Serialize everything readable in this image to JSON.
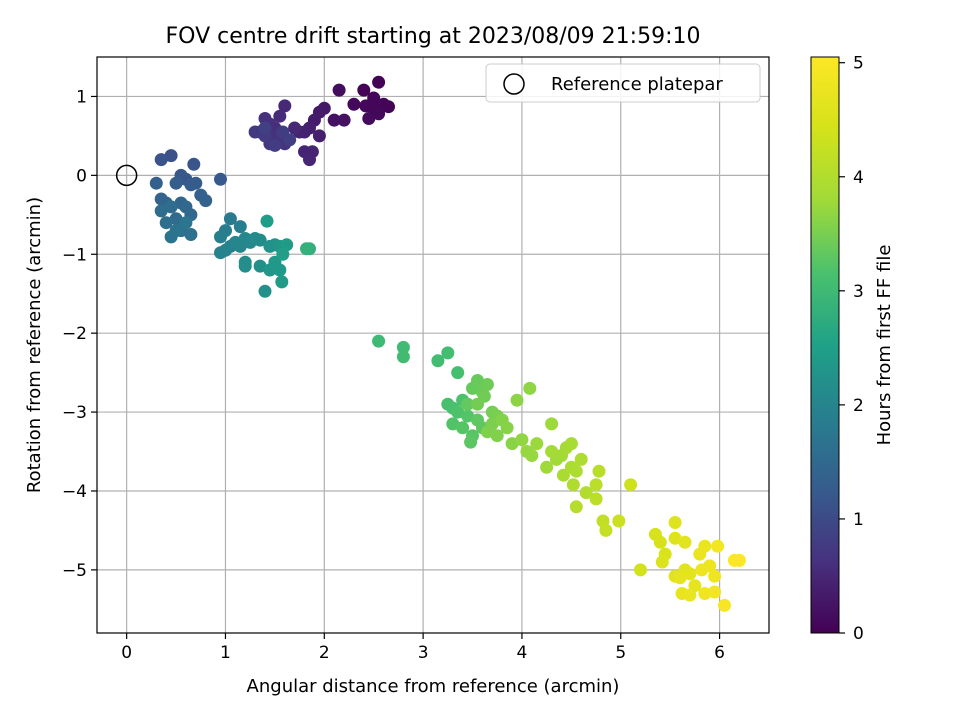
{
  "chart_data": {
    "type": "scatter",
    "title": "FOV centre drift starting at 2023/08/09 21:59:10",
    "xlabel": "Angular distance from reference (arcmin)",
    "ylabel": "Rotation from reference (arcmin)",
    "xlim": [
      -0.3,
      6.5
    ],
    "ylim": [
      -5.8,
      1.5
    ],
    "xticks": [
      "0",
      "1",
      "2",
      "3",
      "4",
      "5",
      "6"
    ],
    "yticks": [
      "1",
      "0",
      "−1",
      "−2",
      "−3",
      "−4",
      "−5"
    ],
    "grid": true,
    "legend": {
      "placement": "top-right",
      "entries": [
        {
          "label": "Reference platepar",
          "marker": "open-circle"
        }
      ]
    },
    "reference_point": {
      "x": 0,
      "y": 0
    },
    "colorbar": {
      "label": "Hours from first FF file",
      "min": 0,
      "max": 5.05,
      "ticks": [
        "0",
        "1",
        "2",
        "3",
        "4",
        "5"
      ],
      "colormap": "viridis"
    },
    "points": [
      [
        2.55,
        1.18,
        0.02
      ],
      [
        2.4,
        1.08,
        0.05
      ],
      [
        2.5,
        0.98,
        0.06
      ],
      [
        2.6,
        0.9,
        0.04
      ],
      [
        2.65,
        0.87,
        0.05
      ],
      [
        2.42,
        0.88,
        0.08
      ],
      [
        2.3,
        0.9,
        0.1
      ],
      [
        2.5,
        0.85,
        0.07
      ],
      [
        2.45,
        0.72,
        0.12
      ],
      [
        2.55,
        0.78,
        0.09
      ],
      [
        2.15,
        1.08,
        0.15
      ],
      [
        2.2,
        0.7,
        0.2
      ],
      [
        2.1,
        0.7,
        0.22
      ],
      [
        2.0,
        0.85,
        0.3
      ],
      [
        1.95,
        0.8,
        0.32
      ],
      [
        1.9,
        0.7,
        0.35
      ],
      [
        1.85,
        0.6,
        0.38
      ],
      [
        1.95,
        0.5,
        0.4
      ],
      [
        1.8,
        0.55,
        0.42
      ],
      [
        1.75,
        0.55,
        0.44
      ],
      [
        1.88,
        0.3,
        0.45
      ],
      [
        1.8,
        0.3,
        0.46
      ],
      [
        1.85,
        0.2,
        0.48
      ],
      [
        1.7,
        0.6,
        0.5
      ],
      [
        1.6,
        0.88,
        0.52
      ],
      [
        1.55,
        0.75,
        0.55
      ],
      [
        1.5,
        0.6,
        0.58
      ],
      [
        1.45,
        0.65,
        0.6
      ],
      [
        1.4,
        0.72,
        0.62
      ],
      [
        1.5,
        0.5,
        0.64
      ],
      [
        1.55,
        0.45,
        0.66
      ],
      [
        1.6,
        0.4,
        0.68
      ],
      [
        1.45,
        0.4,
        0.7
      ],
      [
        1.35,
        0.55,
        0.72
      ],
      [
        1.3,
        0.55,
        0.74
      ],
      [
        1.4,
        0.5,
        0.76
      ],
      [
        1.5,
        0.38,
        0.78
      ],
      [
        1.58,
        0.55,
        0.8
      ],
      [
        1.65,
        0.45,
        0.82
      ],
      [
        1.4,
        0.6,
        0.84
      ],
      [
        0.45,
        0.25,
        1.1
      ],
      [
        0.35,
        0.2,
        1.12
      ],
      [
        0.68,
        0.14,
        1.15
      ],
      [
        0.55,
        0.0,
        1.18
      ],
      [
        0.6,
        -0.05,
        1.2
      ],
      [
        0.95,
        -0.05,
        1.22
      ],
      [
        0.65,
        -0.12,
        1.25
      ],
      [
        0.7,
        -0.1,
        1.27
      ],
      [
        0.5,
        -0.1,
        1.3
      ],
      [
        0.3,
        -0.1,
        1.33
      ],
      [
        0.75,
        -0.25,
        1.35
      ],
      [
        0.8,
        -0.32,
        1.38
      ],
      [
        0.35,
        -0.3,
        1.4
      ],
      [
        0.4,
        -0.35,
        1.42
      ],
      [
        0.55,
        -0.35,
        1.45
      ],
      [
        0.6,
        -0.4,
        1.47
      ],
      [
        0.65,
        -0.5,
        1.5
      ],
      [
        0.5,
        -0.55,
        1.52
      ],
      [
        0.45,
        -0.4,
        1.55
      ],
      [
        0.35,
        -0.45,
        1.57
      ],
      [
        0.4,
        -0.6,
        1.6
      ],
      [
        0.55,
        -0.7,
        1.62
      ],
      [
        0.65,
        -0.75,
        1.65
      ],
      [
        0.45,
        -0.78,
        1.68
      ],
      [
        0.5,
        -0.7,
        1.7
      ],
      [
        0.6,
        -0.6,
        1.72
      ],
      [
        1.05,
        -0.55,
        1.8
      ],
      [
        1.0,
        -0.7,
        1.85
      ],
      [
        1.15,
        -0.65,
        1.88
      ],
      [
        0.95,
        -0.78,
        1.9
      ],
      [
        1.05,
        -0.9,
        1.92
      ],
      [
        1.0,
        -0.95,
        1.95
      ],
      [
        0.95,
        -0.98,
        1.97
      ],
      [
        1.1,
        -0.85,
        2.0
      ],
      [
        1.2,
        -0.8,
        2.02
      ],
      [
        1.15,
        -0.9,
        2.05
      ],
      [
        1.25,
        -0.85,
        2.07
      ],
      [
        1.3,
        -0.8,
        2.1
      ],
      [
        1.35,
        -0.82,
        2.12
      ],
      [
        1.2,
        -1.1,
        2.15
      ],
      [
        1.2,
        -1.15,
        2.17
      ],
      [
        1.35,
        -1.15,
        2.2
      ],
      [
        1.4,
        -1.47,
        2.22
      ],
      [
        1.45,
        -0.9,
        2.25
      ],
      [
        1.5,
        -0.88,
        2.27
      ],
      [
        1.55,
        -0.9,
        2.3
      ],
      [
        1.45,
        -1.2,
        2.32
      ],
      [
        1.5,
        -1.1,
        2.35
      ],
      [
        1.55,
        -1.2,
        2.37
      ],
      [
        1.57,
        -1.35,
        2.4
      ],
      [
        1.62,
        -0.88,
        2.42
      ],
      [
        1.42,
        -0.58,
        2.45
      ],
      [
        1.58,
        -1.0,
        2.47
      ],
      [
        1.85,
        -0.93,
        2.8
      ],
      [
        1.82,
        -0.93,
        2.82
      ],
      [
        2.55,
        -2.1,
        3.0
      ],
      [
        2.8,
        -2.18,
        3.02
      ],
      [
        2.8,
        -2.3,
        3.04
      ],
      [
        3.15,
        -2.35,
        3.06
      ],
      [
        3.25,
        -2.25,
        3.08
      ],
      [
        3.35,
        -2.5,
        3.1
      ],
      [
        3.25,
        -2.9,
        3.12
      ],
      [
        3.3,
        -2.95,
        3.14
      ],
      [
        3.4,
        -2.85,
        3.16
      ],
      [
        3.35,
        -3.0,
        3.18
      ],
      [
        3.3,
        -3.15,
        3.2
      ],
      [
        3.45,
        -3.05,
        3.22
      ],
      [
        3.4,
        -3.2,
        3.24
      ],
      [
        3.5,
        -3.3,
        3.26
      ],
      [
        3.48,
        -3.38,
        3.28
      ],
      [
        3.55,
        -3.1,
        3.3
      ],
      [
        3.6,
        -3.2,
        3.32
      ],
      [
        3.45,
        -2.9,
        3.34
      ],
      [
        3.5,
        -2.7,
        3.36
      ],
      [
        3.55,
        -2.6,
        3.38
      ],
      [
        3.6,
        -2.75,
        3.4
      ],
      [
        3.65,
        -2.65,
        3.42
      ],
      [
        3.62,
        -2.8,
        3.44
      ],
      [
        3.55,
        -2.9,
        3.46
      ],
      [
        3.7,
        -3.0,
        3.48
      ],
      [
        3.75,
        -3.05,
        3.5
      ],
      [
        3.7,
        -3.15,
        3.52
      ],
      [
        3.65,
        -3.25,
        3.54
      ],
      [
        3.75,
        -3.3,
        3.56
      ],
      [
        3.8,
        -3.1,
        3.58
      ],
      [
        3.85,
        -3.2,
        3.6
      ],
      [
        3.9,
        -3.4,
        3.62
      ],
      [
        3.95,
        -2.85,
        3.64
      ],
      [
        4.08,
        -2.7,
        3.66
      ],
      [
        4.0,
        -3.35,
        3.68
      ],
      [
        4.05,
        -3.5,
        3.7
      ],
      [
        4.1,
        -3.55,
        3.72
      ],
      [
        4.15,
        -3.4,
        3.74
      ],
      [
        4.3,
        -3.15,
        3.76
      ],
      [
        4.25,
        -3.7,
        3.78
      ],
      [
        4.35,
        -3.6,
        3.8
      ],
      [
        4.4,
        -3.55,
        3.82
      ],
      [
        4.3,
        -3.5,
        3.84
      ],
      [
        4.45,
        -3.45,
        3.86
      ],
      [
        4.5,
        -3.4,
        3.88
      ],
      [
        4.42,
        -3.8,
        3.9
      ],
      [
        4.5,
        -3.7,
        3.92
      ],
      [
        4.55,
        -3.75,
        3.94
      ],
      [
        4.6,
        -3.6,
        3.96
      ],
      [
        4.52,
        -3.92,
        3.98
      ],
      [
        4.65,
        -4.02,
        4.0
      ],
      [
        4.55,
        -4.2,
        4.05
      ],
      [
        4.78,
        -3.75,
        4.08
      ],
      [
        4.75,
        -3.92,
        4.1
      ],
      [
        4.75,
        -4.1,
        4.12
      ],
      [
        4.82,
        -4.38,
        4.2
      ],
      [
        4.85,
        -4.5,
        4.22
      ],
      [
        4.98,
        -4.38,
        4.3
      ],
      [
        5.1,
        -3.92,
        4.35
      ],
      [
        5.2,
        -5.0,
        4.4
      ],
      [
        5.35,
        -4.55,
        4.45
      ],
      [
        5.4,
        -4.65,
        4.48
      ],
      [
        5.45,
        -4.8,
        4.5
      ],
      [
        5.42,
        -4.9,
        4.52
      ],
      [
        5.55,
        -4.4,
        4.55
      ],
      [
        5.55,
        -4.6,
        4.57
      ],
      [
        5.55,
        -5.08,
        4.6
      ],
      [
        5.65,
        -4.65,
        4.62
      ],
      [
        5.65,
        -5.0,
        4.64
      ],
      [
        5.7,
        -5.05,
        4.66
      ],
      [
        5.6,
        -5.1,
        4.68
      ],
      [
        5.75,
        -5.2,
        4.7
      ],
      [
        5.62,
        -5.3,
        4.72
      ],
      [
        5.7,
        -5.32,
        4.74
      ],
      [
        5.8,
        -4.8,
        4.76
      ],
      [
        5.85,
        -4.7,
        4.78
      ],
      [
        5.82,
        -5.0,
        4.8
      ],
      [
        5.9,
        -4.95,
        4.82
      ],
      [
        5.95,
        -5.08,
        4.84
      ],
      [
        5.85,
        -5.3,
        4.86
      ],
      [
        5.95,
        -5.28,
        4.88
      ],
      [
        5.98,
        -4.7,
        4.9
      ],
      [
        6.05,
        -5.45,
        4.95
      ],
      [
        6.15,
        -4.88,
        5.02
      ],
      [
        6.2,
        -4.88,
        5.05
      ]
    ]
  }
}
